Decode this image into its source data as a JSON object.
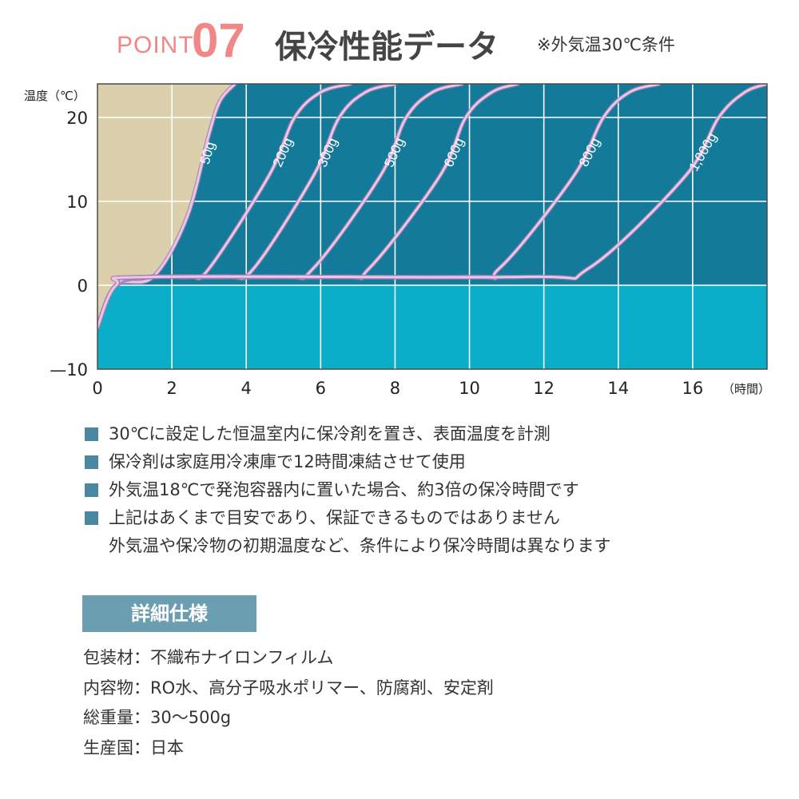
{
  "header": {
    "point_word": "POINT",
    "point_num": "07",
    "title": "保冷性能データ",
    "subtitle": "※外気温30℃条件"
  },
  "colors": {
    "accent_pink": "#ef8886",
    "frozen_fill": "#0aaec8",
    "melt_region": "#137a9a",
    "ambient_region": "#dccfac",
    "curve": "#f0c4e2",
    "bullet": "#4a87a0",
    "spec_heading_bg": "#6b9eb1"
  },
  "chart_data": {
    "type": "line",
    "ylabel": "温度（℃）",
    "xlabel": "（時間）",
    "xlim": [
      0,
      18
    ],
    "ylim": [
      -10,
      24
    ],
    "xticks": [
      0,
      2,
      4,
      6,
      8,
      10,
      12,
      14,
      16
    ],
    "yticks": [
      -10,
      0,
      10,
      20
    ],
    "grid": true,
    "series": [
      {
        "name": "50g",
        "x": [
          0,
          0.5,
          1.5,
          2.4,
          3.0,
          3.3,
          3.7
        ],
        "y": [
          -5,
          0,
          1,
          8,
          18,
          22,
          24
        ]
      },
      {
        "name": "200g",
        "x": [
          0,
          0.5,
          1.5,
          2.5,
          3.0,
          4.6,
          5.3,
          6.0,
          6.8
        ],
        "y": [
          -5,
          0,
          1,
          1,
          2,
          13,
          20,
          23,
          24
        ]
      },
      {
        "name": "300g",
        "x": [
          0,
          0.5,
          1.5,
          3.5,
          4.2,
          5.8,
          6.5,
          7.2,
          8.0
        ],
        "y": [
          -5,
          0,
          1,
          1,
          2,
          13,
          20,
          23,
          24
        ]
      },
      {
        "name": "500g",
        "x": [
          0,
          0.5,
          1.5,
          5.0,
          5.8,
          7.6,
          8.3,
          9.0,
          9.8
        ],
        "y": [
          -5,
          0,
          1,
          1,
          2,
          13,
          20,
          23,
          24
        ]
      },
      {
        "name": "600g",
        "x": [
          0,
          0.5,
          1.5,
          6.5,
          7.3,
          9.2,
          9.9,
          10.6,
          11.3
        ],
        "y": [
          -5,
          0,
          1,
          1,
          2,
          13,
          20,
          23,
          24
        ]
      },
      {
        "name": "800g",
        "x": [
          0,
          0.5,
          1.5,
          9.8,
          10.8,
          12.8,
          13.6,
          14.3,
          15.1
        ],
        "y": [
          -5,
          0,
          1,
          1,
          2,
          13,
          20,
          23,
          24
        ]
      },
      {
        "name": "1,000g",
        "x": [
          0,
          0.5,
          1.5,
          11.5,
          13.2,
          15.8,
          16.7,
          17.4,
          18.0
        ],
        "y": [
          -5,
          0,
          1,
          1,
          2,
          13,
          20,
          23,
          24
        ]
      }
    ]
  },
  "notes": [
    "30℃に設定した恒温室内に保冷剤を置き、表面温度を計測",
    "保冷剤は家庭用冷凍庫で12時間凍結させて使用",
    "外気温18℃で発泡容器内に置いた場合、約3倍の保冷時間です",
    "上記はあくまで目安であり、保証できるものではありません",
    "外気温や保冷物の初期温度など、条件により保冷時間は異なります"
  ],
  "spec_heading": "詳細仕様",
  "specs": [
    "包装材：不織布ナイロンフィルム",
    "内容物：RO水、高分子吸水ポリマー、防腐剤、安定剤",
    "総重量：30～500g",
    "生産国：日本"
  ]
}
